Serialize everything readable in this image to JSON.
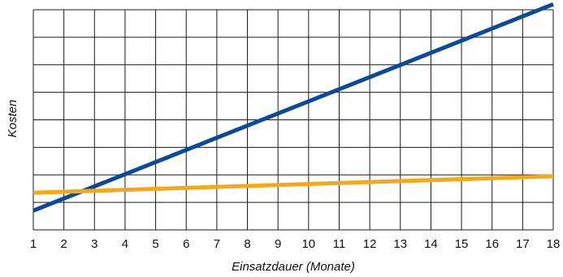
{
  "chart_data": {
    "type": "line",
    "title": "",
    "xlabel": "Einsatzdauer (Monate)",
    "ylabel": "Kosten",
    "x_ticks": [
      "1",
      "2",
      "3",
      "4",
      "5",
      "6",
      "7",
      "8",
      "9",
      "10",
      "11",
      "12",
      "13",
      "14",
      "15",
      "16",
      "17",
      "18"
    ],
    "xlim": [
      1,
      18
    ],
    "ylim": [
      0,
      8
    ],
    "y_tick_labels_shown": false,
    "grid": true,
    "legend": "none",
    "series": [
      {
        "color": "#0b4a96",
        "x": [
          1,
          18
        ],
        "y": [
          0.7,
          8.2
        ]
      },
      {
        "color": "#f3a91a",
        "x": [
          1,
          18
        ],
        "y": [
          1.35,
          1.95
        ]
      }
    ]
  }
}
